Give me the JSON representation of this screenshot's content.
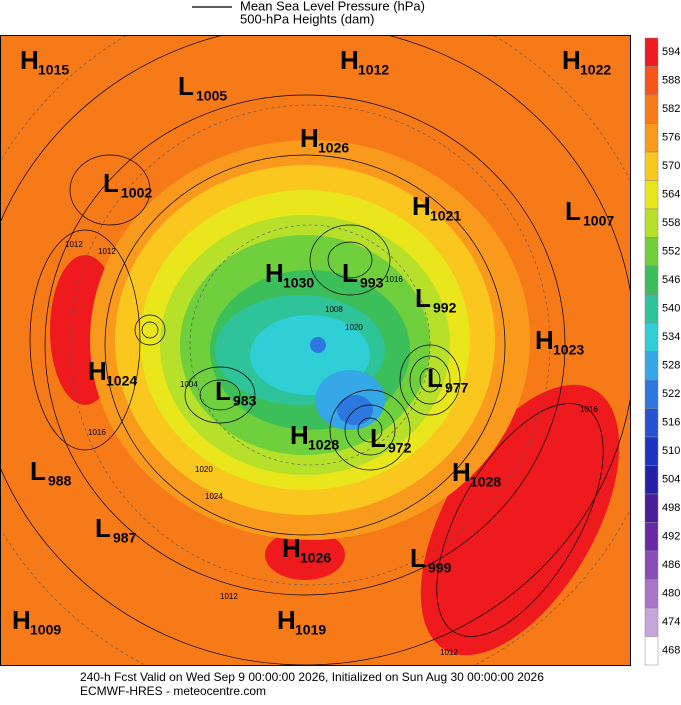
{
  "legend": {
    "lines": [
      "Mean Sea Level Pressure (hPa)",
      "500-hPa Heights (dam)"
    ]
  },
  "colorbar": {
    "ticks": [
      594,
      588,
      582,
      576,
      570,
      564,
      558,
      552,
      546,
      540,
      534,
      528,
      522,
      516,
      510,
      504,
      498,
      492,
      486,
      480,
      474,
      468
    ],
    "colors": [
      "#ee1a1e",
      "#f4561a",
      "#f77a18",
      "#f99a1c",
      "#f9c71e",
      "#e9e61c",
      "#b6e02a",
      "#6fcf3c",
      "#3cbf5a",
      "#2fc39a",
      "#2ed0d6",
      "#36a8e8",
      "#2c78e0",
      "#2353d2",
      "#1d34c0",
      "#2420a8",
      "#4a1c98",
      "#6a2aa8",
      "#8a4cb8",
      "#a776c8",
      "#c6a4dc",
      "#ffffff"
    ]
  },
  "centers": [
    {
      "type": "H",
      "value": 1015
    },
    {
      "type": "L",
      "value": 1005
    },
    {
      "type": "H",
      "value": 1012
    },
    {
      "type": "H",
      "value": 1022
    },
    {
      "type": "H",
      "value": 1026
    },
    {
      "type": "L",
      "value": 1002
    },
    {
      "type": "H",
      "value": 1021
    },
    {
      "type": "L",
      "value": 1007
    },
    {
      "type": "H",
      "value": 1030
    },
    {
      "type": "L",
      "value": 993
    },
    {
      "type": "L",
      "value": 992
    },
    {
      "type": "H",
      "value": 1023
    },
    {
      "type": "H",
      "value": 1024
    },
    {
      "type": "L",
      "value": 977
    },
    {
      "type": "L",
      "value": 983
    },
    {
      "type": "H",
      "value": 1028
    },
    {
      "type": "L",
      "value": 972
    },
    {
      "type": "H",
      "value": 1028
    },
    {
      "type": "L",
      "value": 988
    },
    {
      "type": "L",
      "value": 987
    },
    {
      "type": "H",
      "value": 1026
    },
    {
      "type": "L",
      "value": 999
    },
    {
      "type": "H",
      "value": 1009
    },
    {
      "type": "H",
      "value": 1019
    }
  ],
  "contour_labels": [
    1012,
    1012,
    1016,
    1020,
    1024,
    1016,
    1012,
    1012,
    1016,
    1020,
    1008,
    1004
  ],
  "footer": [
    "240-h Fcst Valid on Wed Sep  9 00:00:00 2026, Initialized on Sun Aug 30 00:00:00 2026",
    "ECMWF-HRES  - meteocentre.com"
  ]
}
